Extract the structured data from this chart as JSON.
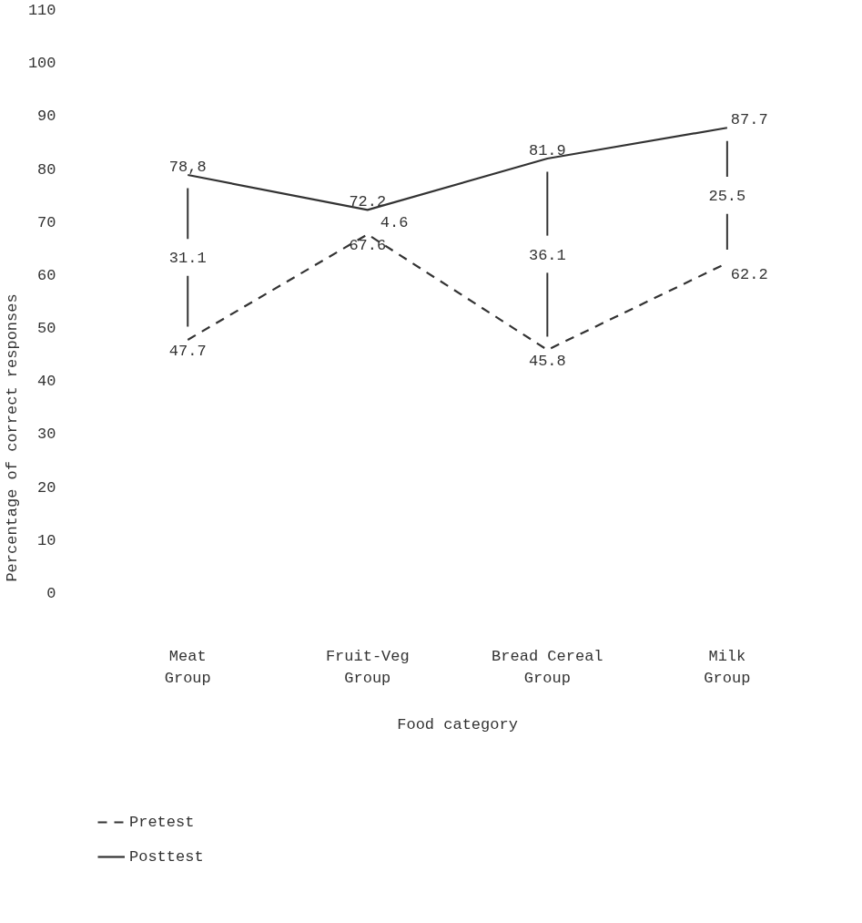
{
  "chart_data": {
    "type": "line",
    "xlabel": "Food category",
    "ylabel": "Percentage of correct responses",
    "categories": [
      "Meat Group",
      "Fruit-Veg Group",
      "Bread Cereal Group",
      "Milk Group"
    ],
    "series": [
      {
        "name": "Pretest",
        "color": "#333333",
        "line_style": "dashed",
        "values": [
          47.7,
          67.6,
          45.8,
          62.2
        ],
        "value_labels": [
          "47.7",
          "67.6",
          "45.8",
          "62.2"
        ]
      },
      {
        "name": "Posttest",
        "color": "#333333",
        "line_style": "solid",
        "values": [
          78.8,
          72.2,
          81.9,
          87.7
        ],
        "value_labels": [
          "78,8",
          "72.2",
          "81.9",
          "87.7"
        ]
      }
    ],
    "annotations": [
      "31.1",
      "4.6",
      "36.1",
      "25.5"
    ],
    "ylim": [
      0,
      110
    ],
    "yticks": [
      0,
      10,
      20,
      30,
      40,
      50,
      60,
      70,
      80,
      90,
      100,
      110
    ],
    "grid": false,
    "legend": "bottom left",
    "marker": "none"
  }
}
